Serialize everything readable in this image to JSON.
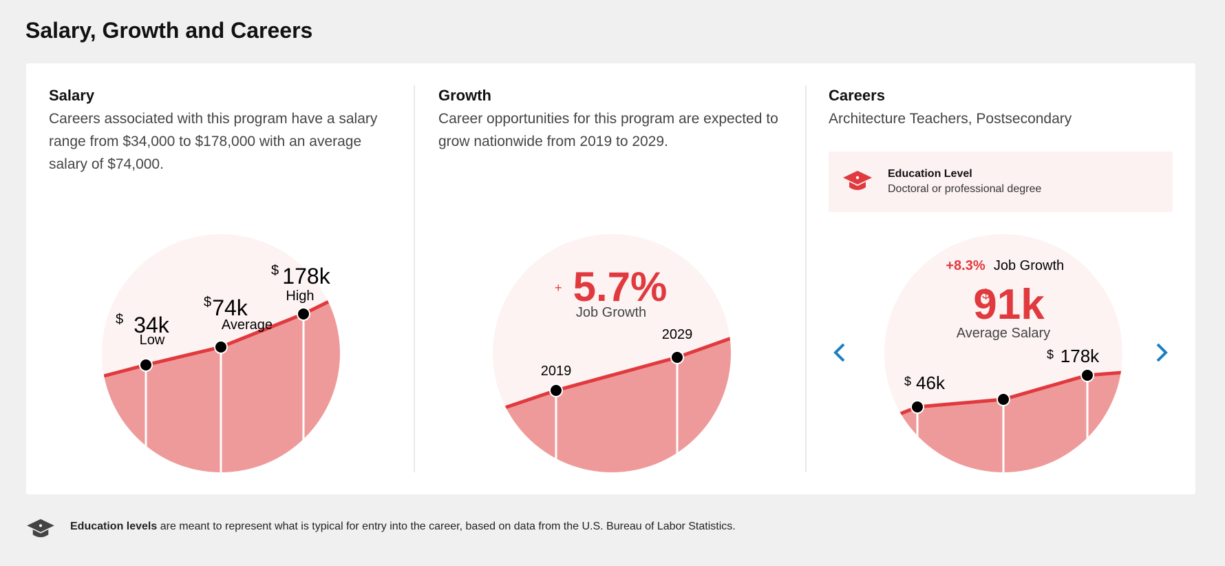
{
  "page": {
    "title": "Salary, Growth and Careers"
  },
  "salary": {
    "title": "Salary",
    "description": "Careers associated with this program have a salary range from $34,000 to $178,000 with an average salary of $74,000.",
    "currency": "$",
    "low": {
      "value": "34k",
      "label": "Low"
    },
    "average": {
      "value": "74k",
      "label": "Average"
    },
    "high": {
      "value": "178k",
      "label": "High"
    }
  },
  "growth": {
    "title": "Growth",
    "description": "Career opportunities for this program are expected to grow nationwide from 2019 to 2029.",
    "sign": "+",
    "value": "5.7%",
    "label": "Job Growth",
    "start_year": "2019",
    "end_year": "2029"
  },
  "careers": {
    "title": "Careers",
    "career_name": "Architecture Teachers, Postsecondary",
    "education": {
      "title": "Education Level",
      "value": "Doctoral or professional degree"
    },
    "job_growth_value": "+8.3%",
    "job_growth_label": "Job Growth",
    "currency": "$",
    "average_salary": "91k",
    "average_label": "Average Salary",
    "low": "46k",
    "high": "178k"
  },
  "footer": {
    "bold": "Education levels",
    "text": " are meant to represent what is typical for entry into the career, based on data from the U.S. Bureau of Labor Statistics."
  },
  "colors": {
    "accent": "#e03a3e",
    "fill": "#ef9a9a",
    "circle_bg": "#fdf3f3",
    "nav": "#1a7fc1"
  }
}
